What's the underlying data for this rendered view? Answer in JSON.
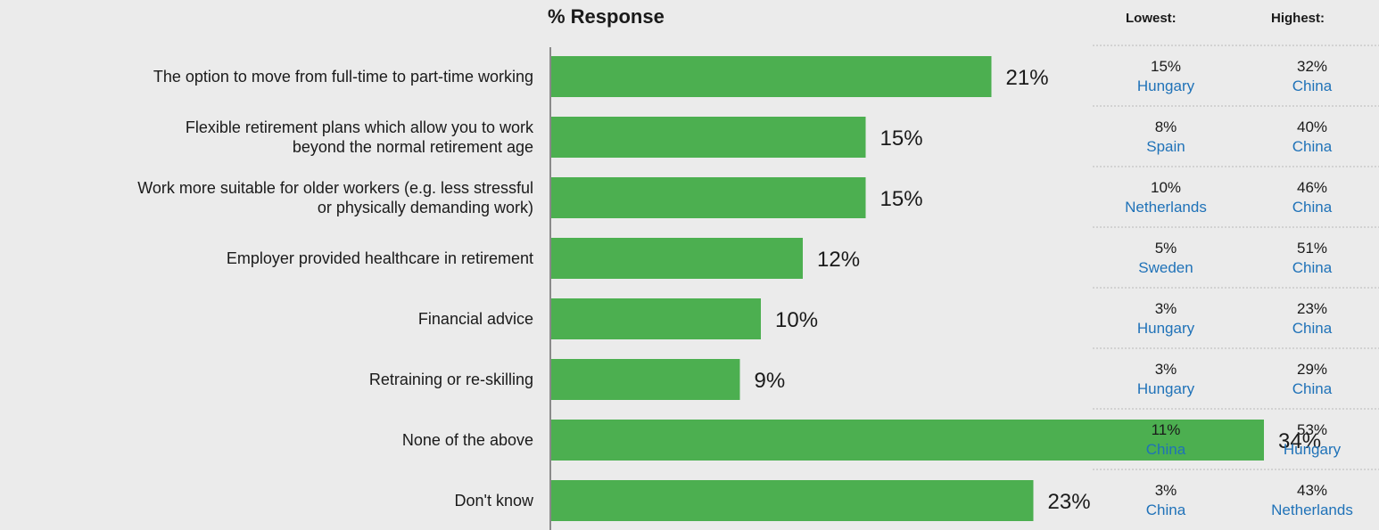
{
  "chart_data": {
    "type": "bar",
    "orientation": "horizontal",
    "title": "% Response",
    "categories": [
      "The option to move from full-time to part-time working",
      "Flexible retirement plans which allow you to work beyond the normal retirement age",
      "Work more suitable for older workers (e.g. less stressful or physically demanding work)",
      "Employer provided healthcare in retirement",
      "Financial advice",
      "Retraining or re-skilling",
      "None of the above",
      "Don't know"
    ],
    "category_lines": [
      [
        "The option to move from full-time to part-time working"
      ],
      [
        "Flexible retirement plans which allow you to work",
        "beyond the normal retirement age"
      ],
      [
        "Work more suitable for older workers (e.g. less stressful",
        "or physically demanding work)"
      ],
      [
        "Employer provided healthcare in retirement"
      ],
      [
        "Financial advice"
      ],
      [
        "Retraining or re-skilling"
      ],
      [
        "None of the above"
      ],
      [
        "Don't know"
      ]
    ],
    "values": [
      21,
      15,
      15,
      12,
      10,
      9,
      34,
      23
    ],
    "value_labels": [
      "21%",
      "15%",
      "15%",
      "12%",
      "10%",
      "9%",
      "34%",
      "23%"
    ],
    "xlim": [
      0,
      36
    ],
    "grid": false,
    "bar_color": "#4caf50",
    "axis_color": "#8a8a8a"
  },
  "side_table": {
    "lowest_header": "Lowest:",
    "highest_header": "Highest:",
    "rows": [
      {
        "low_pct": "15%",
        "low_country": "Hungary",
        "high_pct": "32%",
        "high_country": "China"
      },
      {
        "low_pct": "8%",
        "low_country": "Spain",
        "high_pct": "40%",
        "high_country": "China"
      },
      {
        "low_pct": "10%",
        "low_country": "Netherlands",
        "high_pct": "46%",
        "high_country": "China"
      },
      {
        "low_pct": "5%",
        "low_country": "Sweden",
        "high_pct": "51%",
        "high_country": "China"
      },
      {
        "low_pct": "3%",
        "low_country": "Hungary",
        "high_pct": "23%",
        "high_country": "China"
      },
      {
        "low_pct": "3%",
        "low_country": "Hungary",
        "high_pct": "29%",
        "high_country": "China"
      },
      {
        "low_pct": "11%",
        "low_country": "China",
        "high_pct": "53%",
        "high_country": "Hungary"
      },
      {
        "low_pct": "3%",
        "low_country": "China",
        "high_pct": "43%",
        "high_country": "Netherlands"
      }
    ],
    "country_color": "#1f72b8",
    "separator_color": "#b8b8b8"
  }
}
